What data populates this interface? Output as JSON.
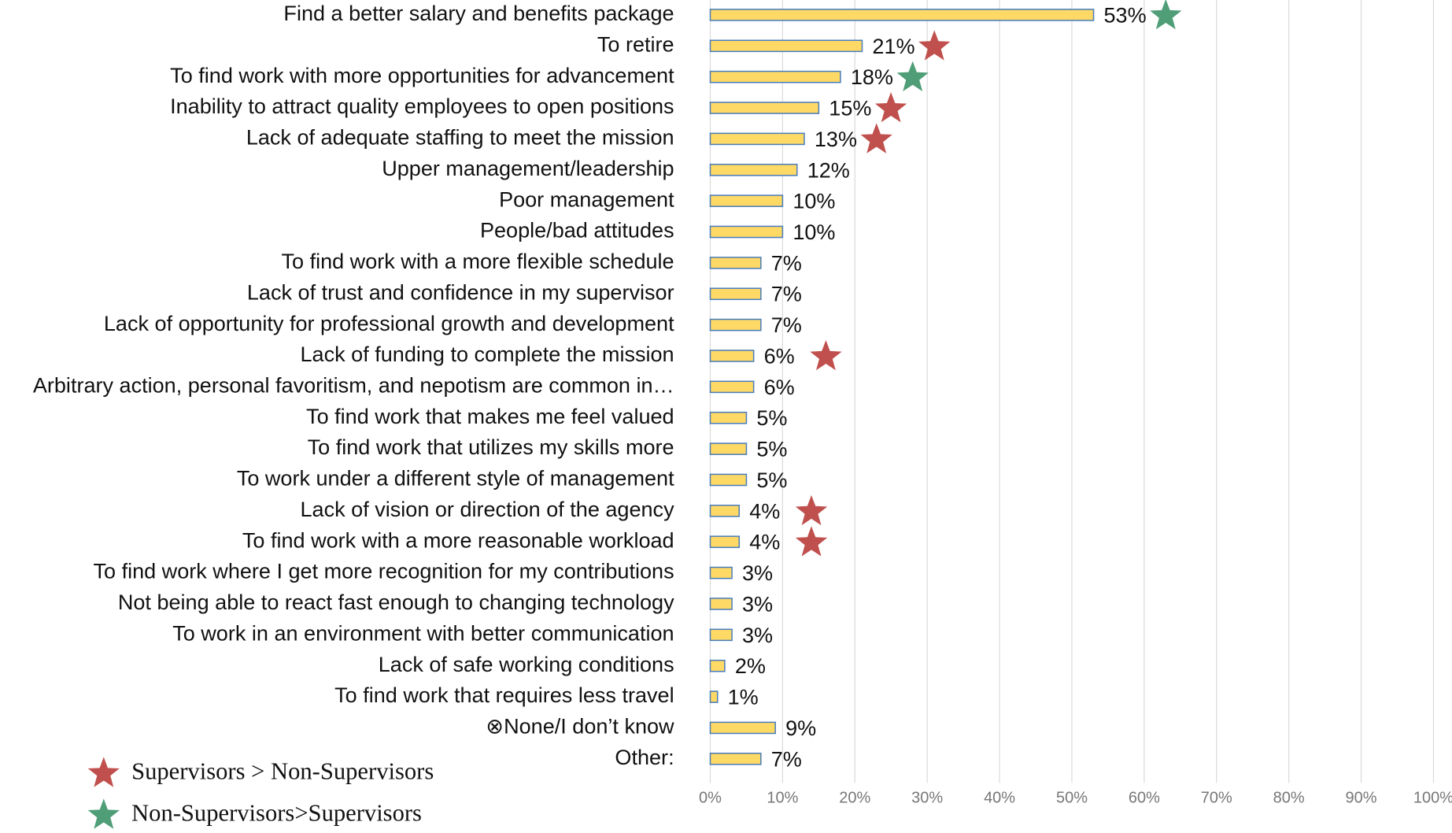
{
  "chart_data": {
    "type": "hbar",
    "categories": [
      "Find a better salary and benefits package",
      "To retire",
      "To find work with more opportunities for advancement",
      "Inability to attract quality employees to open positions",
      "Lack of adequate staffing to meet the mission",
      "Upper management/leadership",
      "Poor management",
      "People/bad attitudes",
      "To find work with a more flexible schedule",
      "Lack of trust and confidence in my supervisor",
      "Lack of opportunity for professional growth and development",
      "Lack of funding to complete the mission",
      "Arbitrary action, personal favoritism, and nepotism are common in…",
      "To find work that makes me feel valued",
      "To find work that utilizes my skills more",
      "To work under a different style of management",
      "Lack of vision or direction of the agency",
      "To find work with a more reasonable workload",
      "To find work where I get more recognition for my contributions",
      "Not being able to react fast enough to changing technology",
      "To work in an environment with better communication",
      "Lack of safe working conditions",
      "To find work that requires less travel",
      "⊗None/I don’t know",
      "Other:"
    ],
    "values": [
      53,
      21,
      18,
      15,
      13,
      12,
      10,
      10,
      7,
      7,
      7,
      6,
      6,
      5,
      5,
      5,
      4,
      4,
      3,
      3,
      3,
      2,
      1,
      9,
      7
    ],
    "value_labels": [
      "53%",
      "21%",
      "18%",
      "15%",
      "13%",
      "12%",
      "10%",
      "10%",
      "7%",
      "7%",
      "7%",
      "6%",
      "6%",
      "5%",
      "5%",
      "5%",
      "4%",
      "4%",
      "3%",
      "3%",
      "3%",
      "2%",
      "1%",
      "9%",
      "7%"
    ],
    "color": "#ffd966",
    "edge_color": "#4a7ebb",
    "xlim": [
      0,
      100
    ],
    "xticks": [
      {
        "value": 0,
        "label": "0%"
      },
      {
        "value": 10,
        "label": "10%"
      },
      {
        "value": 20,
        "label": "20%"
      },
      {
        "value": 30,
        "label": "30%"
      },
      {
        "value": 40,
        "label": "40%"
      },
      {
        "value": 50,
        "label": "50%"
      },
      {
        "value": 60,
        "label": "60%"
      },
      {
        "value": 70,
        "label": "70%"
      },
      {
        "value": 80,
        "label": "80%"
      },
      {
        "value": 90,
        "label": "90%"
      },
      {
        "value": 100,
        "label": "100%"
      }
    ],
    "grid": true,
    "star_legend": [
      {
        "name": "Supervisors > Non-Supervisors",
        "color": "#c0504d"
      },
      {
        "name": "Non-Supervisors>Supervisors",
        "color": "#4f9e78"
      }
    ],
    "star_group": [
      1,
      0,
      1,
      0,
      0,
      null,
      null,
      null,
      null,
      null,
      null,
      0,
      null,
      null,
      null,
      null,
      0,
      0,
      null,
      null,
      null,
      null,
      null,
      null,
      null
    ]
  }
}
